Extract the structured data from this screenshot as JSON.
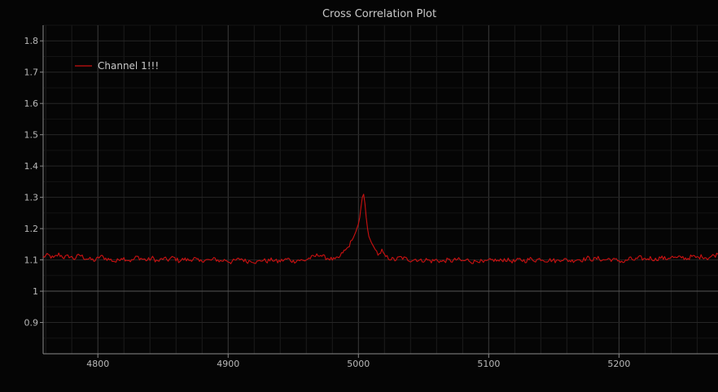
{
  "chart_data": {
    "type": "line",
    "title": "Cross Correlation Plot",
    "xlabel": "",
    "ylabel": "",
    "xlim": [
      4758,
      5276
    ],
    "ylim": [
      0.8,
      1.85
    ],
    "grid": true,
    "legend_position": "top-left",
    "x_major_ticks": [
      4800,
      4900,
      5000,
      5100,
      5200
    ],
    "x_major_tick_labels": [
      "4800",
      "4900",
      "5000",
      "5100",
      "5200"
    ],
    "y_major_ticks": [
      0.9,
      1,
      1.1,
      1.2,
      1.3,
      1.4,
      1.5,
      1.6,
      1.7,
      1.8
    ],
    "y_major_tick_labels": [
      "0.9",
      "1",
      "1.1",
      "1.2",
      "1.3",
      "1.4",
      "1.5",
      "1.6",
      "1.7",
      "1.8"
    ],
    "series": [
      {
        "name": "Channel 1!!!",
        "color": "#cc1111",
        "x": [
          4758,
          4762,
          4766,
          4770,
          4774,
          4778,
          4782,
          4786,
          4790,
          4794,
          4798,
          4802,
          4806,
          4810,
          4814,
          4818,
          4822,
          4826,
          4830,
          4834,
          4838,
          4842,
          4846,
          4850,
          4854,
          4858,
          4862,
          4866,
          4870,
          4874,
          4878,
          4882,
          4886,
          4890,
          4894,
          4898,
          4902,
          4906,
          4910,
          4914,
          4918,
          4922,
          4926,
          4930,
          4934,
          4938,
          4942,
          4946,
          4950,
          4954,
          4958,
          4962,
          4966,
          4970,
          4974,
          4978,
          4982,
          4986,
          4988,
          4990,
          4992,
          4994,
          4996,
          4998,
          5000,
          5001,
          5002,
          5003,
          5004,
          5005,
          5006,
          5007,
          5008,
          5010,
          5012,
          5014,
          5016,
          5018,
          5020,
          5024,
          5028,
          5032,
          5036,
          5040,
          5044,
          5048,
          5052,
          5056,
          5060,
          5064,
          5068,
          5072,
          5076,
          5080,
          5084,
          5088,
          5092,
          5096,
          5100,
          5104,
          5108,
          5112,
          5116,
          5120,
          5124,
          5128,
          5132,
          5136,
          5140,
          5144,
          5148,
          5152,
          5156,
          5160,
          5164,
          5168,
          5172,
          5176,
          5180,
          5184,
          5188,
          5192,
          5196,
          5200,
          5204,
          5208,
          5212,
          5216,
          5220,
          5224,
          5228,
          5232,
          5236,
          5240,
          5244,
          5248,
          5252,
          5256,
          5260,
          5264,
          5268,
          5272,
          5276
        ],
        "y": [
          1.11,
          1.115,
          1.105,
          1.118,
          1.108,
          1.112,
          1.104,
          1.116,
          1.106,
          1.102,
          1.098,
          1.112,
          1.105,
          1.1,
          1.094,
          1.108,
          1.102,
          1.097,
          1.11,
          1.103,
          1.099,
          1.106,
          1.095,
          1.104,
          1.1,
          1.108,
          1.097,
          1.102,
          1.099,
          1.105,
          1.094,
          1.101,
          1.098,
          1.103,
          1.096,
          1.1,
          1.093,
          1.099,
          1.104,
          1.095,
          1.098,
          1.092,
          1.1,
          1.096,
          1.101,
          1.094,
          1.099,
          1.103,
          1.095,
          1.1,
          1.097,
          1.105,
          1.11,
          1.118,
          1.108,
          1.104,
          1.1,
          1.11,
          1.125,
          1.13,
          1.14,
          1.155,
          1.17,
          1.19,
          1.215,
          1.235,
          1.27,
          1.3,
          1.31,
          1.28,
          1.235,
          1.2,
          1.175,
          1.155,
          1.14,
          1.125,
          1.118,
          1.13,
          1.112,
          1.105,
          1.1,
          1.108,
          1.104,
          1.099,
          1.102,
          1.097,
          1.101,
          1.096,
          1.1,
          1.094,
          1.099,
          1.097,
          1.102,
          1.096,
          1.1,
          1.093,
          1.099,
          1.091,
          1.097,
          1.1,
          1.096,
          1.102,
          1.098,
          1.095,
          1.101,
          1.097,
          1.103,
          1.099,
          1.104,
          1.098,
          1.1,
          1.096,
          1.103,
          1.099,
          1.097,
          1.102,
          1.1,
          1.106,
          1.101,
          1.105,
          1.099,
          1.103,
          1.1,
          1.098,
          1.093,
          1.104,
          1.1,
          1.107,
          1.102,
          1.106,
          1.101,
          1.108,
          1.103,
          1.11,
          1.105,
          1.109,
          1.104,
          1.111,
          1.107,
          1.112,
          1.106,
          1.113,
          1.118
        ]
      }
    ]
  }
}
